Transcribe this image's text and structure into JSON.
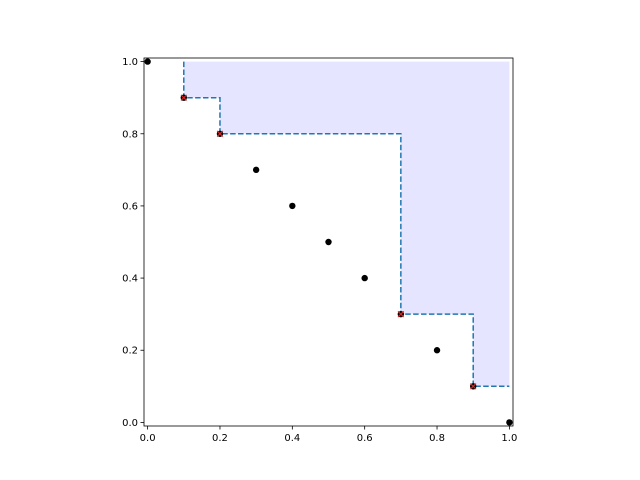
{
  "chart_data": {
    "type": "scatter",
    "title": "",
    "xlabel": "",
    "ylabel": "",
    "xlim": [
      -0.01,
      1.01
    ],
    "ylim": [
      -0.01,
      1.01
    ],
    "grid": false,
    "x_ticks": [
      0.0,
      0.2,
      0.4,
      0.6,
      0.8,
      1.0
    ],
    "x_tick_labels": [
      "0.0",
      "0.2",
      "0.4",
      "0.6",
      "0.8",
      "1.0"
    ],
    "y_ticks": [
      0.0,
      0.2,
      0.4,
      0.6,
      0.8,
      1.0
    ],
    "y_tick_labels": [
      "0.0",
      "0.2",
      "0.4",
      "0.6",
      "0.8",
      "1.0"
    ],
    "series": [
      {
        "kind": "scatter",
        "marker": "circle",
        "color": "#000000",
        "points": [
          [
            0.0,
            1.0
          ],
          [
            0.1,
            0.9
          ],
          [
            0.2,
            0.8
          ],
          [
            0.3,
            0.7
          ],
          [
            0.4,
            0.6
          ],
          [
            0.5,
            0.5
          ],
          [
            0.6,
            0.4
          ],
          [
            0.7,
            0.3
          ],
          [
            0.8,
            0.2
          ],
          [
            0.9,
            0.1
          ],
          [
            1.0,
            0.0
          ]
        ]
      },
      {
        "kind": "scatter",
        "marker": "x",
        "color": "#d62728",
        "points": [
          [
            0.1,
            0.9
          ],
          [
            0.2,
            0.8
          ],
          [
            0.7,
            0.3
          ],
          [
            0.9,
            0.1
          ]
        ]
      },
      {
        "kind": "step-line",
        "style": "dashed",
        "color": "#1f77b4",
        "points": [
          [
            0.1,
            1.0
          ],
          [
            0.1,
            0.9
          ],
          [
            0.2,
            0.9
          ],
          [
            0.2,
            0.8
          ],
          [
            0.7,
            0.8
          ],
          [
            0.7,
            0.3
          ],
          [
            0.9,
            0.3
          ],
          [
            0.9,
            0.1
          ],
          [
            1.0,
            0.1
          ]
        ]
      },
      {
        "kind": "area",
        "color": "#e5e5ff",
        "points": [
          [
            0.1,
            1.0
          ],
          [
            0.1,
            0.9
          ],
          [
            0.2,
            0.9
          ],
          [
            0.2,
            0.8
          ],
          [
            0.7,
            0.8
          ],
          [
            0.7,
            0.3
          ],
          [
            0.9,
            0.3
          ],
          [
            0.9,
            0.1
          ],
          [
            1.0,
            0.1
          ],
          [
            1.0,
            1.0
          ]
        ]
      }
    ]
  }
}
